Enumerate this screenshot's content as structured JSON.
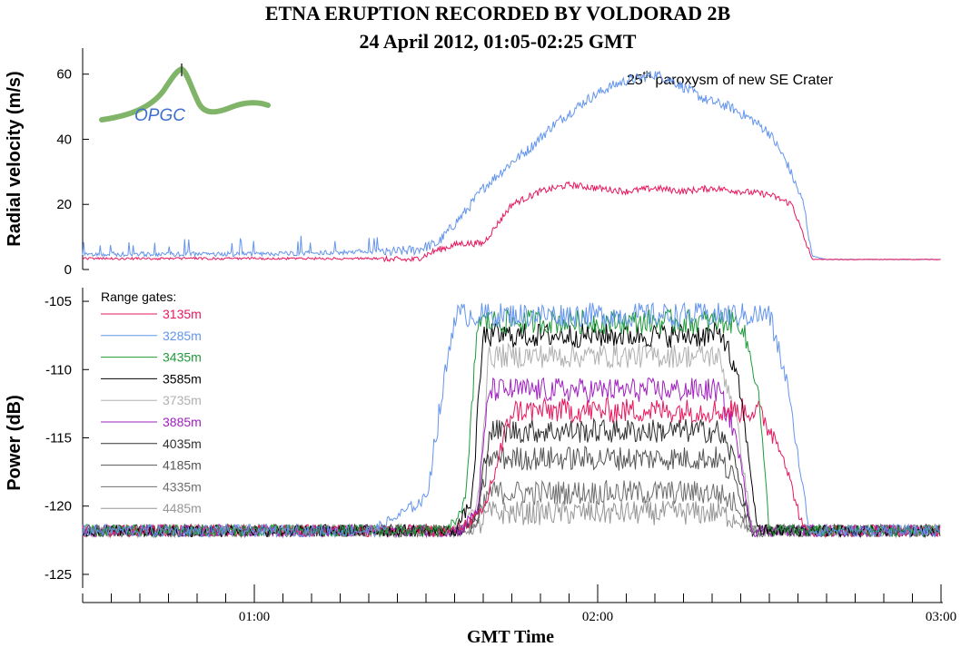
{
  "figure": {
    "title_line1": "ETNA ERUPTION RECORDED BY VOLDORAD 2B",
    "title_line2": "24 April 2012, 01:05-02:25 GMT",
    "logo_text": "OPGC",
    "annotation_base": "25",
    "annotation_sup": "th",
    "annotation_rest": " paroxysm of new SE Crater",
    "legend_title": "Range gates:",
    "xlabel": "GMT Time"
  },
  "chart_data": [
    {
      "type": "line",
      "panel": "top",
      "ylabel": "Radial velocity (m/s)",
      "ylim": [
        0,
        68
      ],
      "yticks": [
        0,
        20,
        40,
        60
      ],
      "xlim_minutes": [
        30,
        180
      ],
      "xticks": [
        "01:00",
        "02:00",
        "03:00"
      ],
      "x_unit": "minutes after 00:00 GMT",
      "grid": false,
      "series": [
        {
          "color": "#6495ed",
          "x": [
            30,
            45,
            60,
            75,
            82,
            88,
            92,
            97,
            100,
            105,
            108,
            112,
            115,
            118,
            122,
            125,
            128,
            130,
            133,
            136,
            139,
            143,
            147,
            150,
            153,
            156,
            157.5,
            160,
            165,
            180
          ],
          "values": [
            4,
            4,
            4,
            4.5,
            5,
            6,
            8,
            18,
            25,
            33,
            37,
            44,
            48,
            52,
            56,
            58,
            59,
            60,
            58,
            55,
            52,
            50,
            46,
            42,
            33,
            20,
            4,
            3,
            3,
            3
          ]
        },
        {
          "color": "#e8175d",
          "x": [
            30,
            45,
            60,
            75,
            82,
            88,
            92,
            96,
            100,
            105,
            110,
            115,
            120,
            125,
            130,
            135,
            140,
            145,
            150,
            154,
            156,
            157.5,
            160,
            180
          ],
          "values": [
            3,
            3,
            3,
            3,
            3,
            3,
            6,
            8,
            8,
            20,
            24,
            26,
            25,
            24,
            25,
            24,
            25,
            24,
            23,
            20,
            10,
            3,
            3,
            3
          ]
        }
      ]
    },
    {
      "type": "line",
      "panel": "bottom",
      "ylabel": "Power (dB)",
      "ylim": [
        -126,
        -104
      ],
      "yticks": [
        -125,
        -120,
        -115,
        -110,
        -105
      ],
      "xlim_minutes": [
        30,
        180
      ],
      "xticks": [
        "01:00",
        "02:00",
        "03:00"
      ],
      "x_unit": "minutes after 00:00 GMT",
      "grid": false,
      "legend_placement": "top-left",
      "series": [
        {
          "name": "3135m",
          "color": "#e8175d",
          "plateau": -113,
          "rise": [
            95,
            100,
            105
          ],
          "fall": [
            148,
            152,
            156
          ]
        },
        {
          "name": "3285m",
          "color": "#6495ed",
          "plateau": -106,
          "rise": [
            81,
            90,
            95
          ],
          "fall": [
            150,
            153,
            157
          ]
        },
        {
          "name": "3435m",
          "color": "#1f9a3a",
          "plateau": -106.5,
          "rise": [
            94,
            97,
            99
          ],
          "fall": [
            145,
            148,
            150
          ]
        },
        {
          "name": "3585m",
          "color": "#000000",
          "plateau": -107.5,
          "rise": [
            95,
            98,
            100
          ],
          "fall": [
            142,
            145,
            148
          ]
        },
        {
          "name": "3735m",
          "color": "#b0b0b0",
          "plateau": -109,
          "rise": [
            96,
            99,
            101
          ],
          "fall": [
            141,
            144,
            147
          ]
        },
        {
          "name": "3885m",
          "color": "#a020c0",
          "plateau": -111.5,
          "rise": [
            96,
            99,
            101
          ],
          "fall": [
            141,
            144,
            147
          ]
        },
        {
          "name": "4035m",
          "color": "#303030",
          "plateau": -114.5,
          "rise": [
            96,
            99,
            101
          ],
          "fall": [
            141,
            144,
            147
          ]
        },
        {
          "name": "4185m",
          "color": "#555555",
          "plateau": -116.5,
          "rise": [
            96,
            99,
            101
          ],
          "fall": [
            141,
            144,
            147
          ]
        },
        {
          "name": "4335m",
          "color": "#6e6e6e",
          "plateau": -119,
          "rise": [
            96,
            99,
            101
          ],
          "fall": [
            141,
            144,
            147
          ]
        },
        {
          "name": "4485m",
          "color": "#969696",
          "plateau": -120.5,
          "rise": [
            96,
            99,
            101
          ],
          "fall": [
            141,
            144,
            147
          ]
        }
      ],
      "noise_floor": -121.8
    }
  ]
}
